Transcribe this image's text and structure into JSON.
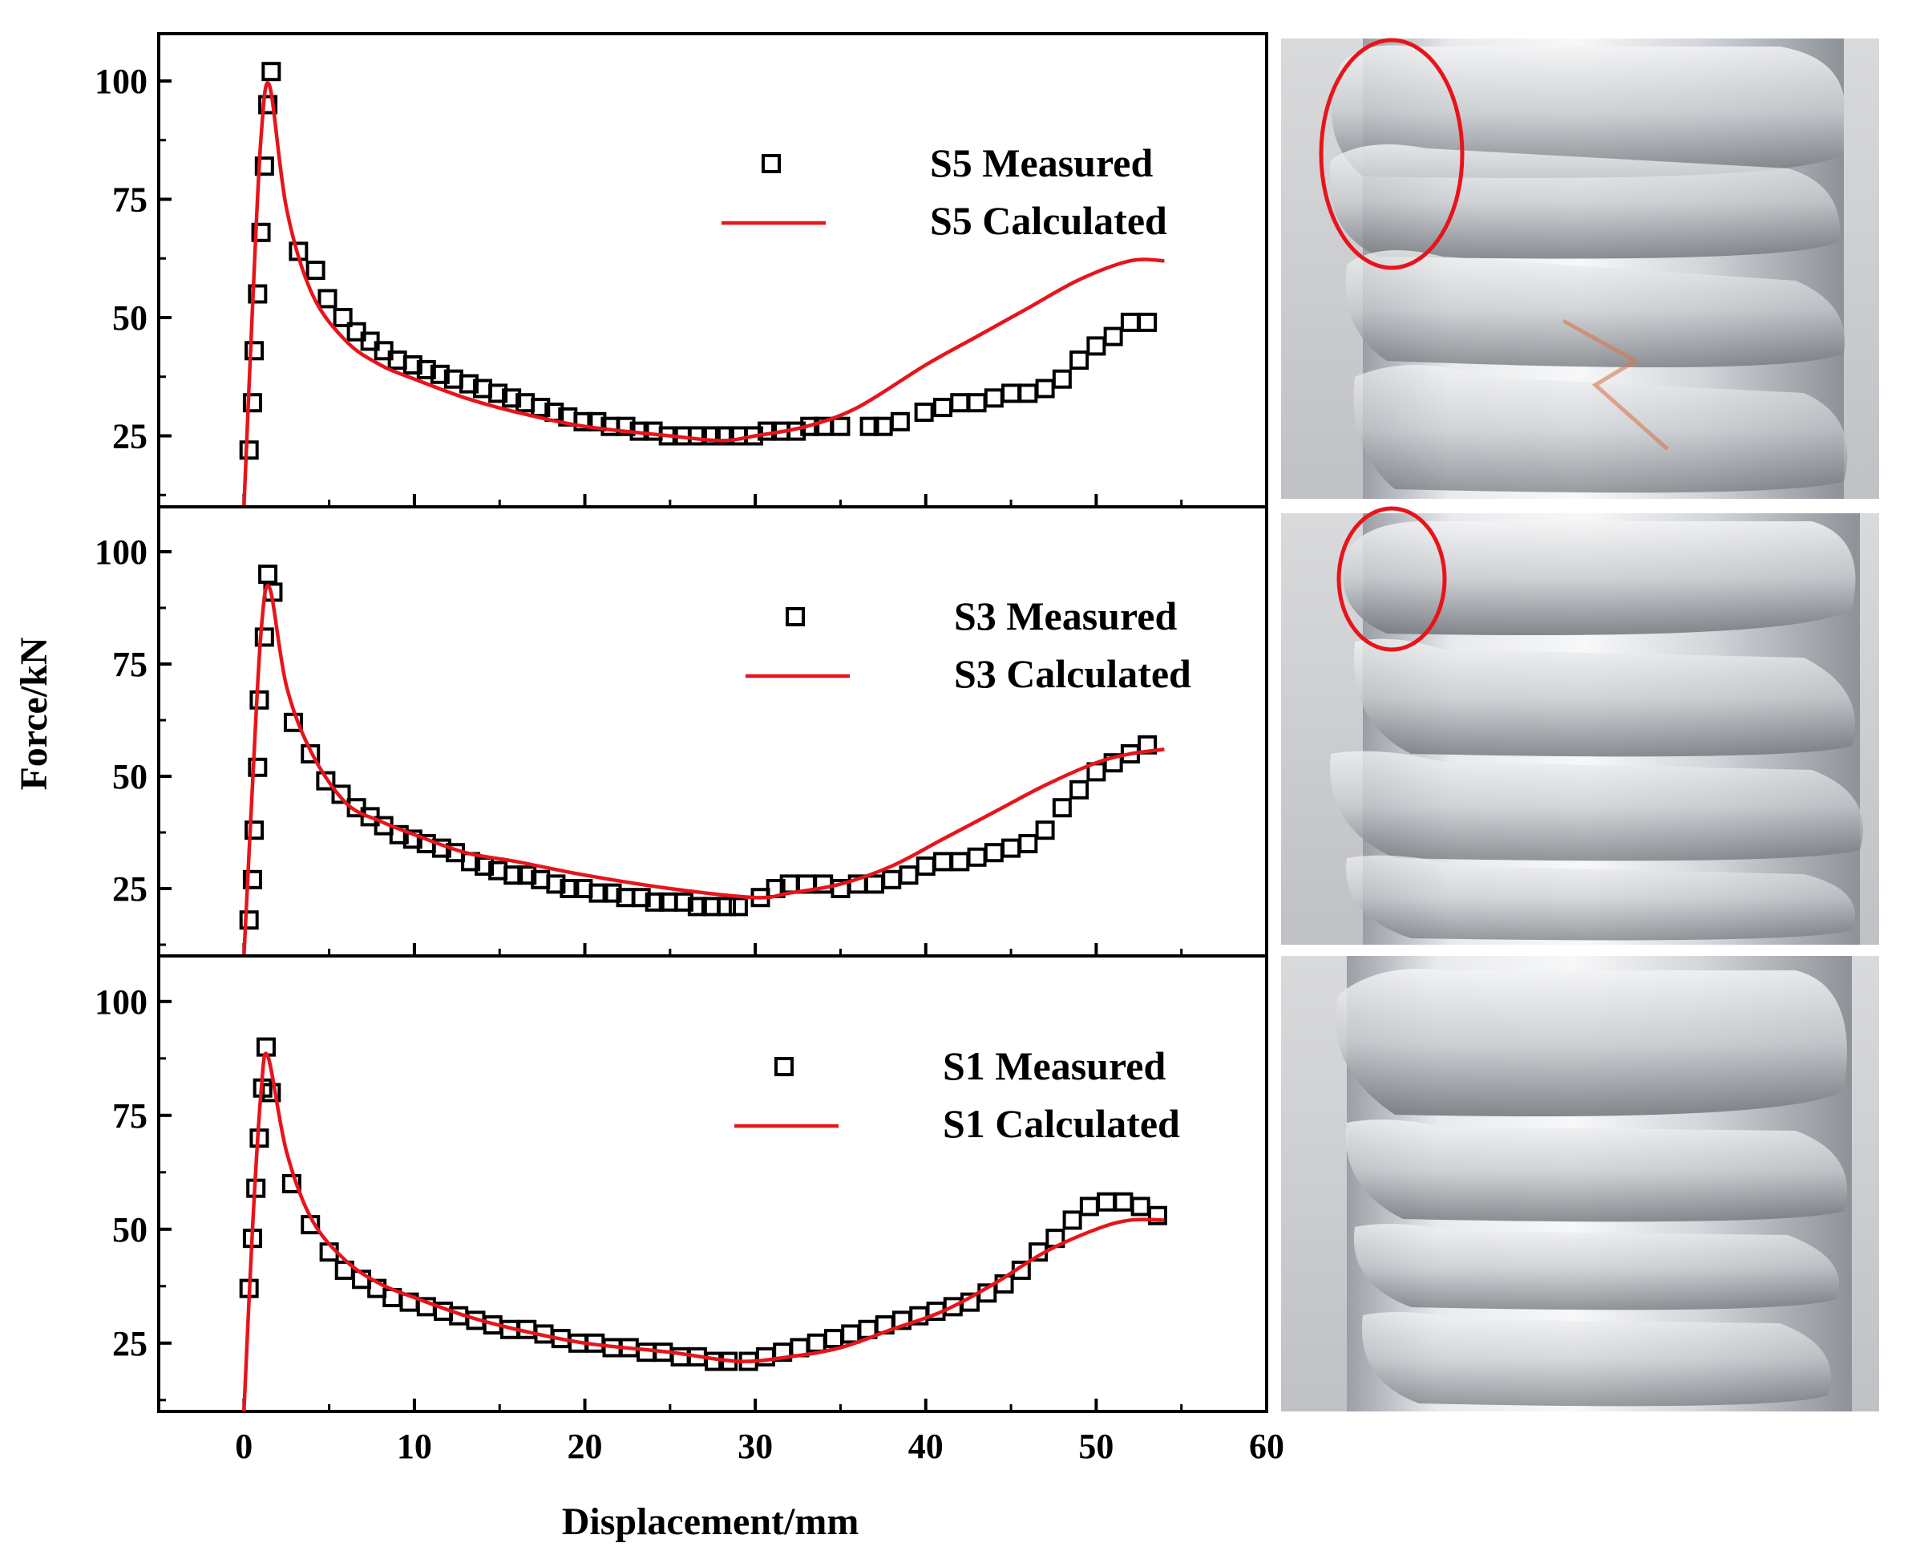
{
  "chart_data": [
    {
      "type": "scatter+line",
      "panel": "top",
      "xlim": [
        -5,
        60
      ],
      "ylim": [
        10,
        110
      ],
      "yticks": [
        25,
        50,
        75,
        100
      ],
      "series": [
        {
          "name": "S5 Measured",
          "style": "square-marker",
          "color": "#000000",
          "x": [
            0.3,
            0.5,
            0.6,
            0.8,
            1.0,
            1.2,
            1.4,
            1.6,
            3.2,
            4.2,
            4.9,
            5.8,
            6.6,
            7.4,
            8.2,
            9.0,
            9.9,
            10.7,
            11.5,
            12.3,
            13.2,
            14.0,
            14.9,
            15.7,
            16.5,
            17.4,
            18.2,
            19.0,
            19.9,
            20.7,
            21.5,
            22.4,
            23.2,
            24.0,
            24.9,
            25.7,
            26.6,
            27.4,
            28.2,
            29.0,
            29.9,
            30.7,
            31.5,
            32.4,
            33.2,
            34.0,
            35.0,
            36.7,
            37.5,
            38.5,
            39.9,
            41.0,
            42.0,
            43.0,
            44.0,
            45.0,
            46.0,
            47.0,
            48.0,
            49.0,
            50.0,
            51.0,
            52.0,
            53.0
          ],
          "y": [
            22,
            32,
            43,
            55,
            68,
            82,
            95,
            102,
            64,
            60,
            54,
            50,
            47,
            45,
            43,
            41,
            40,
            39,
            38,
            37,
            36,
            35,
            34,
            33,
            32,
            31,
            30,
            29,
            28,
            28,
            27,
            27,
            26,
            26,
            25,
            25,
            25,
            25,
            25,
            25,
            25,
            26,
            26,
            26,
            27,
            27,
            27,
            27,
            27,
            28,
            30,
            31,
            32,
            32,
            33,
            34,
            34,
            35,
            37,
            41,
            44,
            46,
            49,
            49
          ]
        },
        {
          "name": "S5 Calculated",
          "style": "line",
          "color": "#e8141b",
          "x": [
            0,
            0.5,
            1.0,
            1.5,
            2.5,
            4,
            6,
            8,
            10,
            13,
            16,
            20,
            25,
            28,
            30,
            33,
            36,
            40,
            43,
            46,
            49,
            52,
            54
          ],
          "y": [
            10,
            52,
            88,
            99,
            73,
            55,
            45,
            40,
            37,
            33,
            30,
            27,
            25,
            24,
            25,
            27,
            31,
            40,
            46,
            52,
            58,
            62,
            62
          ]
        }
      ]
    },
    {
      "type": "scatter+line",
      "panel": "middle",
      "xlim": [
        -5,
        60
      ],
      "ylim": [
        10,
        110
      ],
      "yticks": [
        25,
        50,
        75,
        100
      ],
      "series": [
        {
          "name": "S3 Measured",
          "style": "square-marker",
          "color": "#000000",
          "x": [
            0.3,
            0.5,
            0.6,
            0.8,
            0.9,
            1.2,
            1.4,
            1.7,
            2.9,
            3.9,
            4.8,
            5.7,
            6.6,
            7.4,
            8.2,
            9.1,
            9.9,
            10.7,
            11.6,
            12.4,
            13.3,
            14.1,
            14.9,
            15.8,
            16.6,
            17.4,
            18.3,
            19.1,
            19.9,
            20.8,
            21.6,
            22.4,
            23.3,
            24.1,
            24.9,
            25.8,
            26.6,
            27.4,
            28.3,
            29.0,
            30.3,
            31.2,
            32.0,
            33.0,
            34.0,
            35.0,
            36.0,
            37.0,
            38.0,
            39.0,
            40.0,
            41.0,
            42.0,
            43.0,
            44.0,
            45.0,
            46.0,
            47.0,
            48.0,
            49.0,
            50.0,
            51.0,
            52.0,
            53.0
          ],
          "y": [
            18,
            27,
            38,
            52,
            67,
            81,
            95,
            91,
            62,
            55,
            49,
            46,
            43,
            41,
            39,
            37,
            36,
            35,
            34,
            33,
            31,
            30,
            29,
            28,
            28,
            27,
            26,
            25,
            25,
            24,
            24,
            23,
            23,
            22,
            22,
            22,
            21,
            21,
            21,
            21,
            23,
            25,
            26,
            26,
            26,
            25,
            26,
            26,
            27,
            28,
            30,
            31,
            31,
            32,
            33,
            34,
            35,
            38,
            43,
            47,
            51,
            53,
            55,
            57
          ]
        },
        {
          "name": "S3 Calculated",
          "style": "line",
          "color": "#e8141b",
          "x": [
            0,
            0.5,
            1.0,
            1.5,
            2.5,
            4,
            6,
            8,
            10,
            13,
            16,
            20,
            25,
            30,
            32,
            35,
            38,
            41,
            44,
            47,
            50,
            52,
            54
          ],
          "y": [
            10,
            48,
            82,
            92,
            70,
            55,
            44,
            40,
            37,
            33,
            31,
            28,
            25,
            23,
            24,
            26,
            30,
            36,
            42,
            48,
            53,
            55,
            56
          ]
        }
      ]
    },
    {
      "type": "scatter+line",
      "panel": "bottom",
      "xlim": [
        -5,
        60
      ],
      "ylim": [
        10,
        110
      ],
      "yticks": [
        25,
        50,
        75,
        100
      ],
      "xticks": [
        0,
        10,
        20,
        30,
        40,
        50,
        60
      ],
      "xlabel": "Displacement/mm",
      "series": [
        {
          "name": "S1 Measured",
          "style": "square-marker",
          "color": "#000000",
          "x": [
            0.3,
            0.5,
            0.7,
            0.9,
            1.1,
            1.3,
            1.6,
            2.8,
            3.9,
            5.0,
            5.9,
            6.9,
            7.8,
            8.7,
            9.7,
            10.7,
            11.7,
            12.6,
            13.6,
            14.6,
            15.6,
            16.6,
            17.6,
            18.6,
            19.6,
            20.6,
            21.6,
            22.6,
            23.6,
            24.6,
            25.6,
            26.6,
            27.6,
            28.4,
            29.6,
            30.6,
            31.6,
            32.6,
            33.6,
            34.6,
            35.6,
            36.6,
            37.6,
            38.6,
            39.6,
            40.6,
            41.6,
            42.6,
            43.6,
            44.6,
            45.6,
            46.6,
            47.6,
            48.6,
            49.6,
            50.6,
            51.6,
            52.6,
            53.6
          ],
          "y": [
            37,
            48,
            59,
            70,
            81,
            90,
            80,
            60,
            51,
            45,
            41,
            39,
            37,
            35,
            34,
            33,
            32,
            31,
            30,
            29,
            28,
            28,
            27,
            26,
            25,
            25,
            24,
            24,
            23,
            23,
            22,
            22,
            21,
            21,
            21,
            22,
            23,
            24,
            25,
            26,
            27,
            28,
            29,
            30,
            31,
            32,
            33,
            34,
            36,
            38,
            41,
            45,
            48,
            52,
            55,
            56,
            56,
            55,
            53
          ]
        },
        {
          "name": "S1 Calculated",
          "style": "line",
          "color": "#e8141b",
          "x": [
            0,
            0.5,
            1.0,
            1.4,
            2.5,
            4,
            6,
            8,
            10,
            13,
            16,
            20,
            25,
            29,
            32,
            35,
            38,
            41,
            44,
            47,
            50,
            52,
            54
          ],
          "y": [
            10,
            50,
            80,
            88,
            67,
            52,
            43,
            38,
            35,
            31,
            28,
            25,
            23,
            21,
            22,
            24,
            28,
            32,
            38,
            45,
            50,
            52,
            52
          ]
        }
      ]
    }
  ],
  "shared": {
    "ylabel": "Force/kN",
    "xlabel": "Displacement/mm"
  },
  "photos": [
    {
      "panel": "top",
      "specimen": "S5",
      "annotation": "red-ellipse-cracking"
    },
    {
      "panel": "middle",
      "specimen": "S3",
      "annotation": "red-ellipse-fold"
    },
    {
      "panel": "bottom",
      "specimen": "S1",
      "annotation": "none"
    }
  ]
}
